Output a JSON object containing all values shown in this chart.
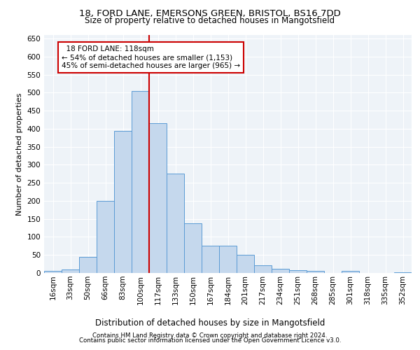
{
  "title_line1": "18, FORD LANE, EMERSONS GREEN, BRISTOL, BS16 7DD",
  "title_line2": "Size of property relative to detached houses in Mangotsfield",
  "xlabel": "Distribution of detached houses by size in Mangotsfield",
  "ylabel": "Number of detached properties",
  "bar_labels": [
    "16sqm",
    "33sqm",
    "50sqm",
    "66sqm",
    "83sqm",
    "100sqm",
    "117sqm",
    "133sqm",
    "150sqm",
    "167sqm",
    "184sqm",
    "201sqm",
    "217sqm",
    "234sqm",
    "251sqm",
    "268sqm",
    "285sqm",
    "301sqm",
    "318sqm",
    "335sqm",
    "352sqm"
  ],
  "bar_values": [
    5,
    10,
    45,
    200,
    395,
    505,
    415,
    275,
    137,
    75,
    75,
    50,
    22,
    12,
    8,
    6,
    0,
    5,
    0,
    0,
    2
  ],
  "bar_color": "#c5d8ed",
  "bar_edge_color": "#5b9bd5",
  "marker_label": "18 FORD LANE: 118sqm",
  "marker_pct_smaller": "54% of detached houses are smaller (1,153)",
  "marker_pct_larger": "45% of semi-detached houses are larger (965)",
  "marker_line_color": "#cc0000",
  "annotation_box_edge_color": "#cc0000",
  "ylim": [
    0,
    660
  ],
  "yticks": [
    0,
    50,
    100,
    150,
    200,
    250,
    300,
    350,
    400,
    450,
    500,
    550,
    600,
    650
  ],
  "footer_line1": "Contains HM Land Registry data © Crown copyright and database right 2024.",
  "footer_line2": "Contains public sector information licensed under the Open Government Licence v3.0.",
  "bg_color": "#eef3f8",
  "grid_color": "#ffffff",
  "fig_width": 6.0,
  "fig_height": 5.0,
  "title_fontsize": 9.5,
  "subtitle_fontsize": 8.5,
  "ylabel_fontsize": 8,
  "xlabel_fontsize": 8.5,
  "tick_fontsize": 7.5,
  "footer_fontsize": 6.2
}
